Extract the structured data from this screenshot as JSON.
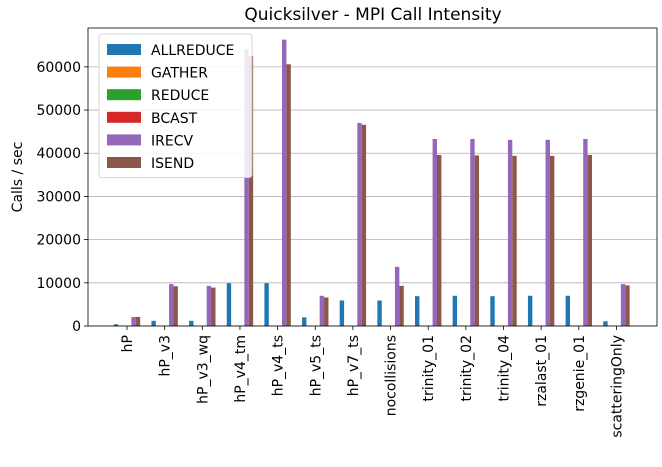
{
  "chart_data": {
    "type": "bar",
    "title": "Quicksilver - MPI Call Intensity",
    "xlabel": "",
    "ylabel": "Calls / sec",
    "ylim": [
      0,
      69000
    ],
    "yticks": [
      0,
      10000,
      20000,
      30000,
      40000,
      50000,
      60000
    ],
    "grid": "horizontal",
    "legend_position": "top-left",
    "categories": [
      "hP",
      "hP_v3",
      "hP_v3_wq",
      "hP_v4_tm",
      "hP_v4_ts",
      "hP_v5_ts",
      "hP_v7_ts",
      "nocollisions",
      "trinity_01",
      "trinity_02",
      "trinity_04",
      "rzalast_01",
      "rzgenie_01",
      "scatteringOnly"
    ],
    "series": [
      {
        "name": "ALLREDUCE",
        "color": "#1f77b4",
        "values": [
          400,
          1200,
          1200,
          9900,
          9900,
          2000,
          5900,
          5900,
          6900,
          7000,
          6900,
          7000,
          7000,
          1100
        ]
      },
      {
        "name": "GATHER",
        "color": "#ff7f0e",
        "values": [
          0,
          0,
          0,
          0,
          0,
          0,
          0,
          0,
          0,
          0,
          0,
          0,
          0,
          0
        ]
      },
      {
        "name": "REDUCE",
        "color": "#2ca02c",
        "values": [
          0,
          0,
          0,
          0,
          0,
          0,
          0,
          0,
          0,
          0,
          0,
          0,
          0,
          0
        ]
      },
      {
        "name": "BCAST",
        "color": "#d62728",
        "values": [
          0,
          0,
          0,
          0,
          0,
          0,
          0,
          0,
          0,
          0,
          0,
          0,
          0,
          0
        ]
      },
      {
        "name": "IRECV",
        "color": "#9467bd",
        "values": [
          2100,
          9700,
          9300,
          64000,
          66300,
          7000,
          47000,
          13700,
          43300,
          43300,
          43100,
          43100,
          43300,
          9700
        ]
      },
      {
        "name": "ISEND",
        "color": "#8c564b",
        "values": [
          2100,
          9200,
          8900,
          62500,
          60600,
          6600,
          46600,
          9300,
          39600,
          39500,
          39400,
          39400,
          39600,
          9400
        ]
      }
    ]
  }
}
